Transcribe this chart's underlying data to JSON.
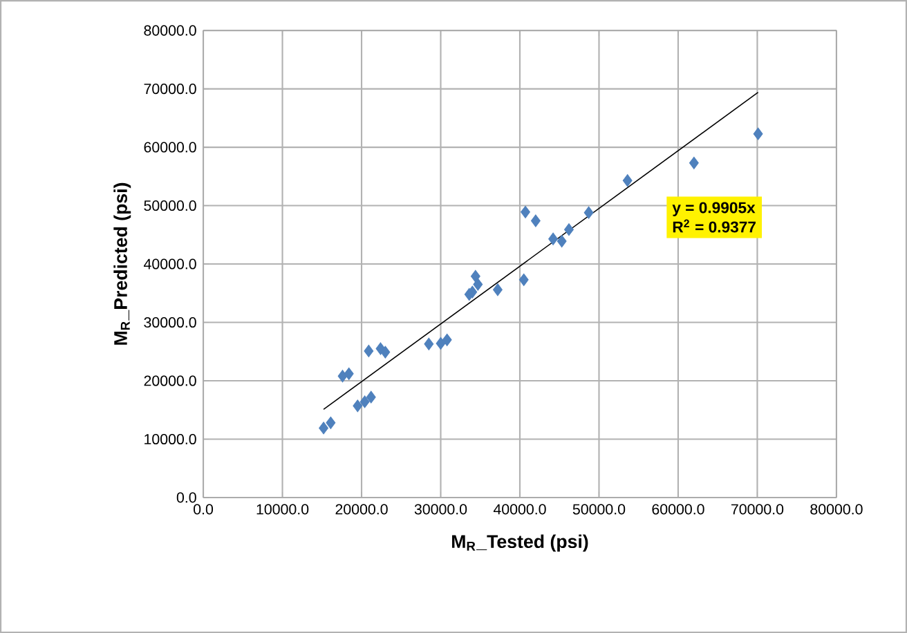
{
  "chart_data": {
    "type": "scatter",
    "xlabel": "M$_{R}$_Tested (psi)",
    "ylabel": "M$_{R}$_Predicted (psi)",
    "x": [
      15200,
      16100,
      17600,
      18400,
      19500,
      20400,
      21200,
      20900,
      22400,
      23000,
      28500,
      30000,
      30800,
      33600,
      34400,
      34700,
      34000,
      37200,
      40500,
      40700,
      42000,
      44200,
      45300,
      46200,
      48700,
      53600,
      62000,
      70100
    ],
    "series": [
      {
        "type": "scatter",
        "color": "#4f81bd",
        "marker": "diamond",
        "values": [
          11900,
          12800,
          20800,
          21200,
          15700,
          16400,
          17200,
          25100,
          25500,
          24900,
          26300,
          26400,
          27000,
          34800,
          37900,
          36500,
          35200,
          35600,
          37300,
          48900,
          47400,
          44300,
          43900,
          45900,
          48800,
          54300,
          57300,
          62300
        ]
      },
      {
        "type": "line",
        "color": "#000000",
        "marker": "none",
        "line_style": "solid",
        "x": [
          15200,
          70100
        ],
        "values": [
          15100,
          69400
        ]
      }
    ],
    "xlim": [
      0,
      80000
    ],
    "ylim": [
      0,
      80000
    ],
    "xticks": [
      {
        "value": 0,
        "label": "0.0"
      },
      {
        "value": 10000,
        "label": "10000.0"
      },
      {
        "value": 20000,
        "label": "20000.0"
      },
      {
        "value": 30000,
        "label": "30000.0"
      },
      {
        "value": 40000,
        "label": "40000.0"
      },
      {
        "value": 50000,
        "label": "50000.0"
      },
      {
        "value": 60000,
        "label": "60000.0"
      },
      {
        "value": 70000,
        "label": "70000.0"
      },
      {
        "value": 80000,
        "label": "80000.0"
      }
    ],
    "yticks": [
      {
        "value": 0,
        "label": "0.0"
      },
      {
        "value": 10000,
        "label": "10000.0"
      },
      {
        "value": 20000,
        "label": "20000.0"
      },
      {
        "value": 30000,
        "label": "30000.0"
      },
      {
        "value": 40000,
        "label": "40000.0"
      },
      {
        "value": 50000,
        "label": "50000.0"
      },
      {
        "value": 60000,
        "label": "60000.0"
      },
      {
        "value": 70000,
        "label": "70000.0"
      },
      {
        "value": 80000,
        "label": "80000.0"
      }
    ],
    "grid": true,
    "annotations": [
      "y = 0.9905x",
      "R$^{2}$ = 0.9377"
    ]
  }
}
